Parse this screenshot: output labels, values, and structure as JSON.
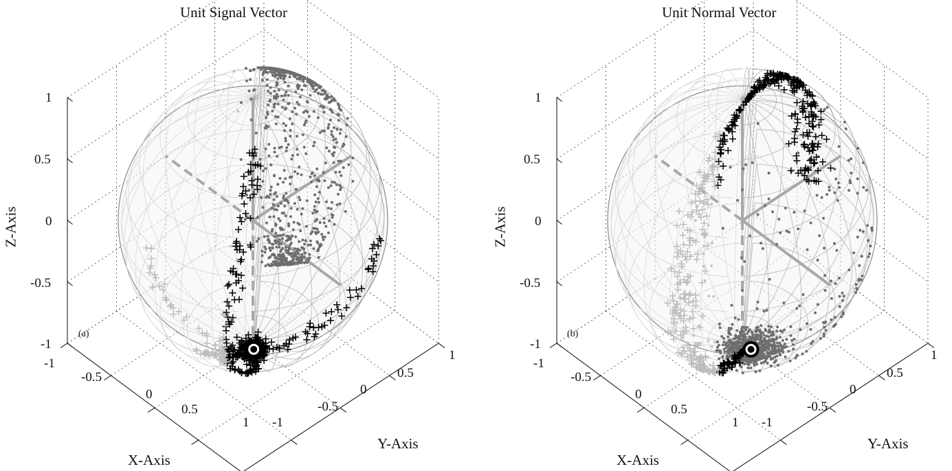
{
  "chart_data": [
    {
      "type": "scatter",
      "panel_label": "(a)",
      "title": "Unit Signal Vector",
      "xlabel": "X-Axis",
      "ylabel": "Y-Axis",
      "zlabel": "Z-Axis",
      "xlim": [
        -1,
        1
      ],
      "ylim": [
        -1,
        1
      ],
      "zlim": [
        -1,
        1
      ],
      "xticks": [
        "-1",
        "-0.5",
        "0",
        "0.5",
        "1"
      ],
      "yticks": [
        "-1",
        "-0.5",
        "0",
        "0.5",
        "1"
      ],
      "zticks": [
        "1",
        "0.5",
        "0",
        "-0.5",
        "-1"
      ],
      "grid": true,
      "projection": "3d",
      "unit_sphere": true,
      "marker_point": [
        0.65,
        -0.57,
        -0.33
      ],
      "series": [
        {
          "marker": "plus",
          "color": "#000000"
        },
        {
          "marker": "dot",
          "color": "#6e6e6e"
        }
      ]
    },
    {
      "type": "scatter",
      "panel_label": "(b)",
      "title": "Unit Normal Vector",
      "xlabel": "X-Axis",
      "ylabel": "Y-Axis",
      "zlabel": "Z-Axis",
      "xlim": [
        -1,
        1
      ],
      "ylim": [
        -1,
        1
      ],
      "zlim": [
        -1,
        1
      ],
      "xticks": [
        "-1",
        "-0.5",
        "0",
        "0.5",
        "1"
      ],
      "yticks": [
        "-1",
        "-0.5",
        "0",
        "0.5",
        "1"
      ],
      "zticks": [
        "1",
        "0.5",
        "0",
        "-0.5",
        "-1"
      ],
      "grid": true,
      "projection": "3d",
      "unit_sphere": true,
      "marker_point": [
        0.65,
        -0.5,
        -0.32
      ],
      "series": [
        {
          "marker": "plus",
          "color": "#000000"
        },
        {
          "marker": "dot",
          "color": "#6e6e6e"
        }
      ]
    }
  ]
}
